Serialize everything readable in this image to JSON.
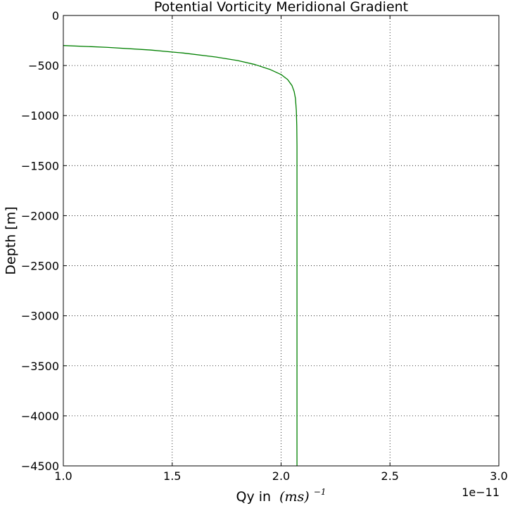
{
  "chart_data": {
    "type": "line",
    "title": "Potential Vorticity Meridional Gradient",
    "xlabel": "Qy in",
    "xlabel_math": "(ms)",
    "xlabel_exp": "−1",
    "ylabel": "Depth [m]",
    "x_offset_label": "1e−11",
    "xlim": [
      1.0,
      3.0
    ],
    "ylim": [
      -4500,
      0
    ],
    "xticks": [
      "1.0",
      "1.5",
      "2.0",
      "2.5",
      "3.0"
    ],
    "xtick_values": [
      1.0,
      1.5,
      2.0,
      2.5,
      3.0
    ],
    "yticks": [
      "0",
      "−500",
      "−1000",
      "−1500",
      "−2000",
      "−2500",
      "−3000",
      "−3500",
      "−4000",
      "−4500"
    ],
    "ytick_values": [
      0,
      -500,
      -1000,
      -1500,
      -2000,
      -2500,
      -3000,
      -3500,
      -4000,
      -4500
    ],
    "grid": true,
    "grid_style": "dotted",
    "series": [
      {
        "color": "#008000",
        "points": [
          [
            1.0,
            -300
          ],
          [
            1.2,
            -318
          ],
          [
            1.4,
            -345
          ],
          [
            1.55,
            -375
          ],
          [
            1.7,
            -415
          ],
          [
            1.8,
            -450
          ],
          [
            1.88,
            -490
          ],
          [
            1.95,
            -540
          ],
          [
            2.0,
            -590
          ],
          [
            2.03,
            -640
          ],
          [
            2.05,
            -700
          ],
          [
            2.06,
            -760
          ],
          [
            2.066,
            -830
          ],
          [
            2.07,
            -950
          ],
          [
            2.072,
            -1100
          ],
          [
            2.073,
            -1300
          ],
          [
            2.073,
            -1600
          ],
          [
            2.073,
            -2000
          ],
          [
            2.073,
            -2500
          ],
          [
            2.073,
            -3000
          ],
          [
            2.073,
            -3500
          ],
          [
            2.073,
            -4000
          ],
          [
            2.073,
            -4500
          ]
        ]
      }
    ]
  }
}
